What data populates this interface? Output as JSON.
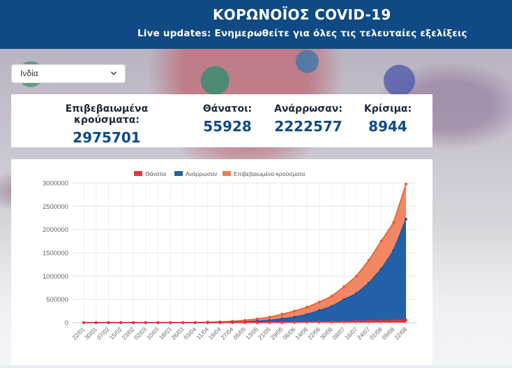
{
  "header": {
    "title": "ΚΟΡΩΝΟΪΟΣ COVID-19",
    "subtitle": "Live updates: Ενημερωθείτε για όλες τις τελευταίες εξελίξεις"
  },
  "country_select": {
    "value": "Ινδία"
  },
  "stats": [
    {
      "label": "Επιβεβαιωμένα κρούσματα:",
      "value": "2975701"
    },
    {
      "label": "Θάνατοι:",
      "value": "55928"
    },
    {
      "label": "Ανάρρωσαν:",
      "value": "2222577"
    },
    {
      "label": "Κρίσιμα:",
      "value": "8944"
    }
  ],
  "colors": {
    "header": "#0f4a84",
    "deaths": "#e8333b",
    "recovered": "#2361a8",
    "confirmed": "#f07a52"
  },
  "chart_data": {
    "type": "area",
    "legend": [
      "Θάνατοι",
      "Ανάρρωσαν",
      "Επιβεβαιωμένα κρούσματα"
    ],
    "legend_position": "top",
    "ylim": [
      0,
      3000000
    ],
    "yticks": [
      "0",
      "500000",
      "1000000",
      "1500000",
      "2000000",
      "2500000",
      "3000000"
    ],
    "xticks": [
      "22/01",
      "30/01",
      "07/02",
      "15/02",
      "23/02",
      "02/03",
      "10/03",
      "18/03",
      "26/03",
      "03/04",
      "11/04",
      "19/04",
      "27/04",
      "05/05",
      "13/05",
      "21/05",
      "29/05",
      "06/06",
      "14/06",
      "22/06",
      "30/06",
      "08/07",
      "16/07",
      "24/07",
      "01/08",
      "09/08",
      "22/08"
    ],
    "series": [
      {
        "name": "Θάνατοι",
        "values": [
          0,
          0,
          0,
          0,
          0,
          0,
          0,
          0,
          20,
          75,
          330,
          590,
          940,
          1690,
          2550,
          3580,
          5160,
          7200,
          11900,
          14000,
          17400,
          22100,
          27500,
          32100,
          37400,
          44400,
          55928
        ]
      },
      {
        "name": "Ανάρρωσαν",
        "values": [
          0,
          0,
          0,
          0,
          0,
          0,
          4,
          20,
          67,
          230,
          1200,
          3250,
          7800,
          14100,
          31000,
          48500,
          82600,
          118000,
          175000,
          260000,
          347000,
          495000,
          625000,
          850000,
          1150000,
          1550000,
          2222577
        ]
      },
      {
        "name": "Επιβεβαιωμένα κρούσματα",
        "values": [
          0,
          0,
          3,
          3,
          3,
          5,
          62,
          151,
          727,
          2543,
          8446,
          17615,
          29451,
          49400,
          78000,
          118000,
          182000,
          247000,
          332000,
          440000,
          567000,
          770000,
          1000000,
          1340000,
          1750000,
          2150000,
          2975701
        ]
      }
    ]
  }
}
